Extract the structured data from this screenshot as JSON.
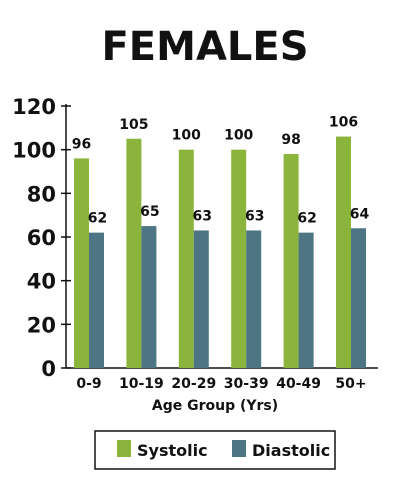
{
  "chart_data": {
    "type": "bar",
    "title": "FEMALES",
    "xlabel": "Age Group (Yrs)",
    "ylabel": "",
    "categories": [
      "0-9",
      "10-19",
      "20-29",
      "30-39",
      "40-49",
      "50+"
    ],
    "series": [
      {
        "name": "Systolic",
        "color": "#8ab43c",
        "values": [
          96,
          105,
          100,
          100,
          98,
          106
        ]
      },
      {
        "name": "Diastolic",
        "color": "#4d7583",
        "values": [
          62,
          65,
          63,
          63,
          62,
          64
        ]
      }
    ],
    "data_labels": {
      "Systolic": [
        "96",
        "105",
        "100",
        "100",
        "98",
        "106"
      ],
      "Diastolic": [
        "62",
        "65",
        "63",
        "63",
        "62",
        "64"
      ]
    },
    "ylim": [
      0,
      120
    ],
    "yticks": [
      "0",
      "20",
      "40",
      "60",
      "80",
      "100",
      "120"
    ],
    "grid": false,
    "legend_position": "bottom"
  }
}
